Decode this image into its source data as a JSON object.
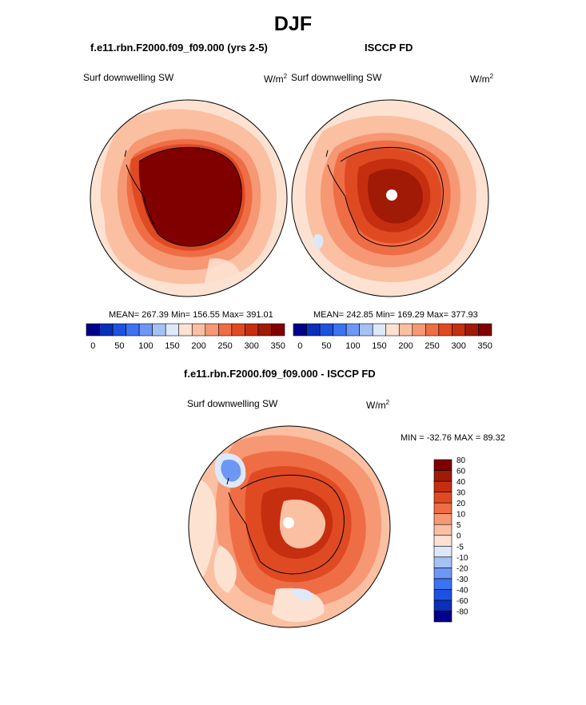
{
  "page": {
    "season_title": "DJF"
  },
  "panels": [
    {
      "title": "f.e11.rbn.F2000.f09_f09.000 (yrs 2-5)",
      "variable": "Surf downwelling SW",
      "units": "W/m",
      "units_sup": "2",
      "stats": "MEAN= 267.39  Min= 156.55  Max= 391.01"
    },
    {
      "title": "ISCCP FD",
      "variable": "Surf downwelling SW",
      "units": "W/m",
      "units_sup": "2",
      "stats": "MEAN= 242.85  Min= 169.29  Max= 377.93"
    },
    {
      "title": "f.e11.rbn.F2000.f09_f09.000 - ISCCP FD",
      "variable": "Surf downwelling SW",
      "units": "W/m",
      "units_sup": "2",
      "stats": "MIN = -32.76 MAX =  89.32"
    }
  ],
  "colorbar_main": {
    "colors": [
      "#00008a",
      "#0a2fb8",
      "#1d52e0",
      "#3b73f2",
      "#6d97f5",
      "#a5c2f7",
      "#dde9fb",
      "#fde2d2",
      "#fbbfa2",
      "#f69873",
      "#ef6d45",
      "#e04a22",
      "#c62e10",
      "#a01a06",
      "#800000"
    ],
    "ticks": [
      "0",
      "50",
      "100",
      "150",
      "200",
      "250",
      "300",
      "350"
    ]
  },
  "colorbar_diff": {
    "colors": [
      "#00008a",
      "#0a2fb8",
      "#1d52e0",
      "#3b73f2",
      "#6d97f5",
      "#a5c2f7",
      "#dde9fb",
      "#fde2d2",
      "#fbbfa2",
      "#f69873",
      "#ef6d45",
      "#e04a22",
      "#c62e10",
      "#a01a06",
      "#800000"
    ],
    "ticks": [
      "-80",
      "-60",
      "-40",
      "-30",
      "-20",
      "-10",
      "-5",
      "0",
      "5",
      "10",
      "20",
      "30",
      "40",
      "60",
      "80"
    ]
  },
  "map_colors": {
    "light": "#fde2d2",
    "pale": "#fbbfa2",
    "mid": "#f69873",
    "orange": "#ef6d45",
    "red": "#e04a22",
    "deep": "#c62e10",
    "darkred": "#a01a06",
    "maroon": "#800000",
    "blue_light": "#dde9fb",
    "blue_mid": "#6d97f5",
    "blue_dark": "#1d52e0"
  },
  "chart_data": {
    "type": "heatmap",
    "title": "DJF",
    "description_units": "W/m2",
    "panels": [
      {
        "name": "f.e11.rbn.F2000.f09_f09.000 (yrs 2-5)",
        "mean": 267.39,
        "min": 156.55,
        "max": 391.01
      },
      {
        "name": "ISCCP FD",
        "mean": 242.85,
        "min": 169.29,
        "max": 377.93
      },
      {
        "name": "f.e11.rbn.F2000.f09_f09.000 - ISCCP FD",
        "min": -32.76,
        "max": 89.32
      }
    ],
    "main_levels": [
      0,
      50,
      100,
      150,
      200,
      250,
      300,
      350
    ],
    "diff_levels": [
      -80,
      -60,
      -40,
      -30,
      -20,
      -10,
      -5,
      0,
      5,
      10,
      20,
      30,
      40,
      60,
      80
    ]
  }
}
